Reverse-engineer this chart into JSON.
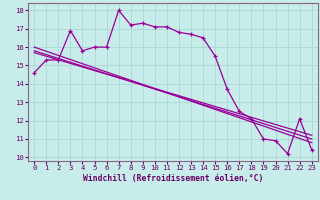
{
  "xlabel": "Windchill (Refroidissement éolien,°C)",
  "bg_color": "#c8ecea",
  "line_color": "#990099",
  "grid_color": "#a8d8d4",
  "text_color": "#660066",
  "spine_color": "#886688",
  "curve1_x": [
    0,
    1,
    2,
    3,
    4,
    5,
    6,
    7,
    8,
    9,
    10,
    11,
    12,
    13,
    14,
    15,
    16,
    17,
    18,
    19,
    20,
    21,
    22,
    23
  ],
  "curve1_y": [
    14.6,
    15.3,
    15.3,
    16.9,
    15.8,
    16.0,
    16.0,
    18.0,
    17.2,
    17.3,
    17.1,
    17.1,
    16.8,
    16.7,
    16.5,
    15.5,
    13.7,
    12.5,
    12.1,
    11.0,
    10.9,
    10.2,
    12.1,
    10.4
  ],
  "trend1_x": [
    0,
    23
  ],
  "trend1_y": [
    16.0,
    10.8
  ],
  "trend2_x": [
    0,
    23
  ],
  "trend2_y": [
    15.7,
    11.2
  ],
  "trend3_x": [
    0,
    23
  ],
  "trend3_y": [
    15.8,
    11.0
  ],
  "ylim": [
    9.8,
    18.4
  ],
  "xlim": [
    -0.5,
    23.5
  ],
  "yticks": [
    10,
    11,
    12,
    13,
    14,
    15,
    16,
    17,
    18
  ],
  "xticks": [
    0,
    1,
    2,
    3,
    4,
    5,
    6,
    7,
    8,
    9,
    10,
    11,
    12,
    13,
    14,
    15,
    16,
    17,
    18,
    19,
    20,
    21,
    22,
    23
  ],
  "tick_fontsize": 5.2,
  "xlabel_fontsize": 5.8
}
